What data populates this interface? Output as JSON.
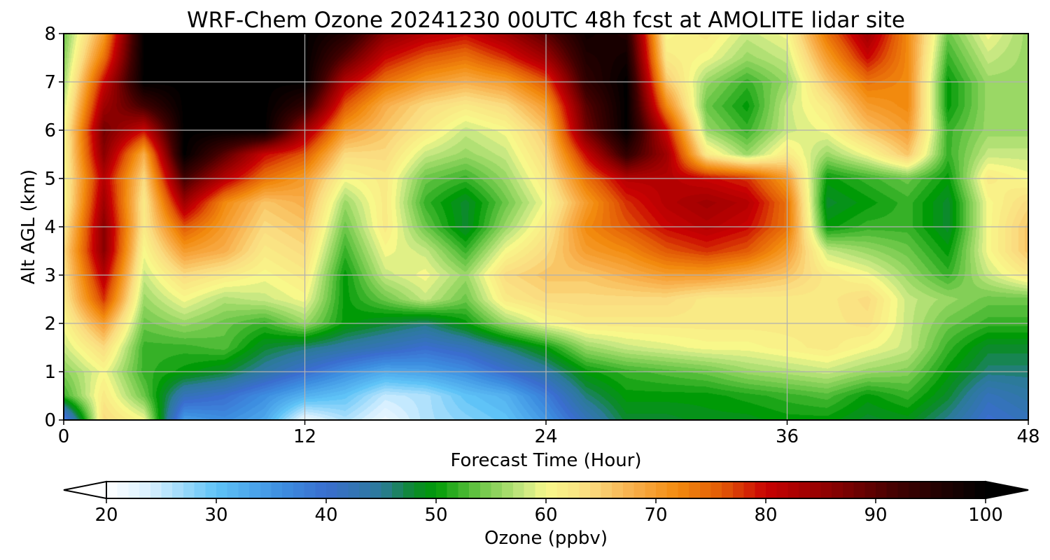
{
  "chart_data": {
    "type": "heatmap",
    "title": "WRF-Chem Ozone  20241230 00UTC 48h fcst at AMOLITE lidar site",
    "xlabel": "Forecast Time (Hour)",
    "ylabel": "Alt AGL (km)",
    "xlim": [
      0,
      48
    ],
    "ylim": [
      0,
      8
    ],
    "xticks": [
      0,
      12,
      24,
      36,
      48
    ],
    "yticks": [
      0,
      1,
      2,
      3,
      4,
      5,
      6,
      7,
      8
    ],
    "grid": true,
    "x": [
      0,
      2,
      4,
      6,
      8,
      10,
      12,
      14,
      16,
      18,
      20,
      22,
      24,
      26,
      28,
      30,
      32,
      34,
      36,
      38,
      40,
      42,
      44,
      46,
      48
    ],
    "y": [
      0.0,
      0.5,
      1.0,
      1.5,
      2.0,
      2.5,
      3.0,
      3.5,
      4.0,
      4.5,
      5.0,
      5.5,
      6.0,
      6.5,
      7.0,
      7.5,
      8.0
    ],
    "z": [
      [
        36,
        64,
        60,
        34,
        36,
        33,
        22,
        26,
        22,
        26,
        28,
        30,
        35,
        42,
        48,
        48,
        49,
        49,
        50,
        50,
        48,
        49,
        45,
        40,
        42
      ],
      [
        52,
        62,
        54,
        42,
        40,
        36,
        32,
        30,
        25,
        26,
        30,
        32,
        38,
        46,
        50,
        50,
        50,
        51,
        52,
        53,
        50,
        52,
        48,
        42,
        44
      ],
      [
        55,
        60,
        52,
        50,
        48,
        44,
        40,
        36,
        33,
        34,
        36,
        40,
        44,
        50,
        52,
        53,
        54,
        56,
        57,
        58,
        56,
        55,
        50,
        46,
        46
      ],
      [
        58,
        64,
        52,
        52,
        53,
        48,
        46,
        44,
        42,
        40,
        42,
        46,
        50,
        56,
        58,
        59,
        60,
        60,
        61,
        62,
        60,
        58,
        52,
        48,
        48
      ],
      [
        60,
        70,
        54,
        56,
        54,
        52,
        56,
        50,
        48,
        46,
        50,
        56,
        60,
        62,
        62,
        62,
        62,
        62,
        62,
        62,
        63,
        58,
        54,
        52,
        52
      ],
      [
        62,
        78,
        56,
        60,
        57,
        58,
        60,
        50,
        54,
        58,
        54,
        62,
        64,
        64,
        64,
        64,
        62,
        62,
        62,
        62,
        64,
        58,
        56,
        54,
        54
      ],
      [
        63,
        82,
        58,
        64,
        62,
        60,
        62,
        50,
        58,
        60,
        56,
        64,
        66,
        66,
        68,
        70,
        70,
        68,
        66,
        62,
        60,
        56,
        52,
        58,
        62
      ],
      [
        64,
        86,
        60,
        70,
        68,
        62,
        64,
        52,
        60,
        58,
        52,
        60,
        64,
        70,
        72,
        76,
        78,
        76,
        70,
        58,
        56,
        54,
        50,
        60,
        66
      ],
      [
        62,
        86,
        62,
        76,
        70,
        64,
        66,
        54,
        62,
        54,
        48,
        56,
        62,
        72,
        76,
        80,
        82,
        80,
        74,
        50,
        52,
        52,
        48,
        60,
        66
      ],
      [
        60,
        84,
        62,
        84,
        72,
        66,
        68,
        56,
        62,
        52,
        48,
        54,
        60,
        70,
        78,
        82,
        84,
        82,
        74,
        48,
        50,
        52,
        48,
        60,
        64
      ],
      [
        60,
        82,
        64,
        92,
        82,
        74,
        70,
        60,
        62,
        54,
        52,
        56,
        62,
        74,
        82,
        82,
        80,
        78,
        70,
        50,
        52,
        54,
        50,
        62,
        60
      ],
      [
        60,
        86,
        68,
        100,
        90,
        80,
        76,
        64,
        64,
        58,
        56,
        58,
        64,
        80,
        94,
        84,
        62,
        56,
        62,
        56,
        60,
        66,
        52,
        58,
        58
      ],
      [
        60,
        88,
        80,
        100,
        100,
        100,
        84,
        70,
        66,
        62,
        58,
        60,
        66,
        88,
        100,
        80,
        56,
        52,
        58,
        60,
        66,
        70,
        52,
        56,
        56
      ],
      [
        58,
        84,
        92,
        100,
        100,
        100,
        94,
        76,
        68,
        64,
        62,
        64,
        70,
        90,
        100,
        72,
        54,
        50,
        58,
        62,
        70,
        72,
        50,
        56,
        56
      ],
      [
        56,
        80,
        100,
        100,
        100,
        100,
        100,
        82,
        74,
        70,
        68,
        70,
        76,
        94,
        100,
        66,
        56,
        52,
        56,
        66,
        74,
        72,
        50,
        56,
        56
      ],
      [
        55,
        74,
        100,
        100,
        100,
        100,
        100,
        90,
        80,
        76,
        74,
        78,
        84,
        96,
        98,
        62,
        60,
        56,
        58,
        70,
        80,
        72,
        52,
        58,
        56
      ],
      [
        54,
        70,
        100,
        100,
        100,
        100,
        100,
        96,
        86,
        82,
        80,
        84,
        90,
        98,
        96,
        60,
        62,
        58,
        60,
        74,
        84,
        72,
        54,
        60,
        56
      ]
    ],
    "colorbar": {
      "label": "Ozone  (ppbv)",
      "min": 20,
      "max": 100,
      "ticks": [
        20,
        30,
        40,
        50,
        60,
        70,
        80,
        90,
        100
      ],
      "extend": "both",
      "stops": [
        {
          "v": 20,
          "c": "#ffffff"
        },
        {
          "v": 24,
          "c": "#d8f0ff"
        },
        {
          "v": 30,
          "c": "#5fc3f7"
        },
        {
          "v": 36,
          "c": "#3d8ee0"
        },
        {
          "v": 40,
          "c": "#3a6ecf"
        },
        {
          "v": 45,
          "c": "#2c7a9a"
        },
        {
          "v": 48,
          "c": "#0c8a2c"
        },
        {
          "v": 50,
          "c": "#009a06"
        },
        {
          "v": 54,
          "c": "#6cc748"
        },
        {
          "v": 58,
          "c": "#c8e882"
        },
        {
          "v": 60,
          "c": "#f8f88a"
        },
        {
          "v": 64,
          "c": "#fadc80"
        },
        {
          "v": 68,
          "c": "#f8ae4a"
        },
        {
          "v": 72,
          "c": "#f28a0e"
        },
        {
          "v": 76,
          "c": "#e25a06"
        },
        {
          "v": 80,
          "c": "#c80202"
        },
        {
          "v": 86,
          "c": "#8a0000"
        },
        {
          "v": 92,
          "c": "#400000"
        },
        {
          "v": 100,
          "c": "#000000"
        }
      ]
    }
  }
}
